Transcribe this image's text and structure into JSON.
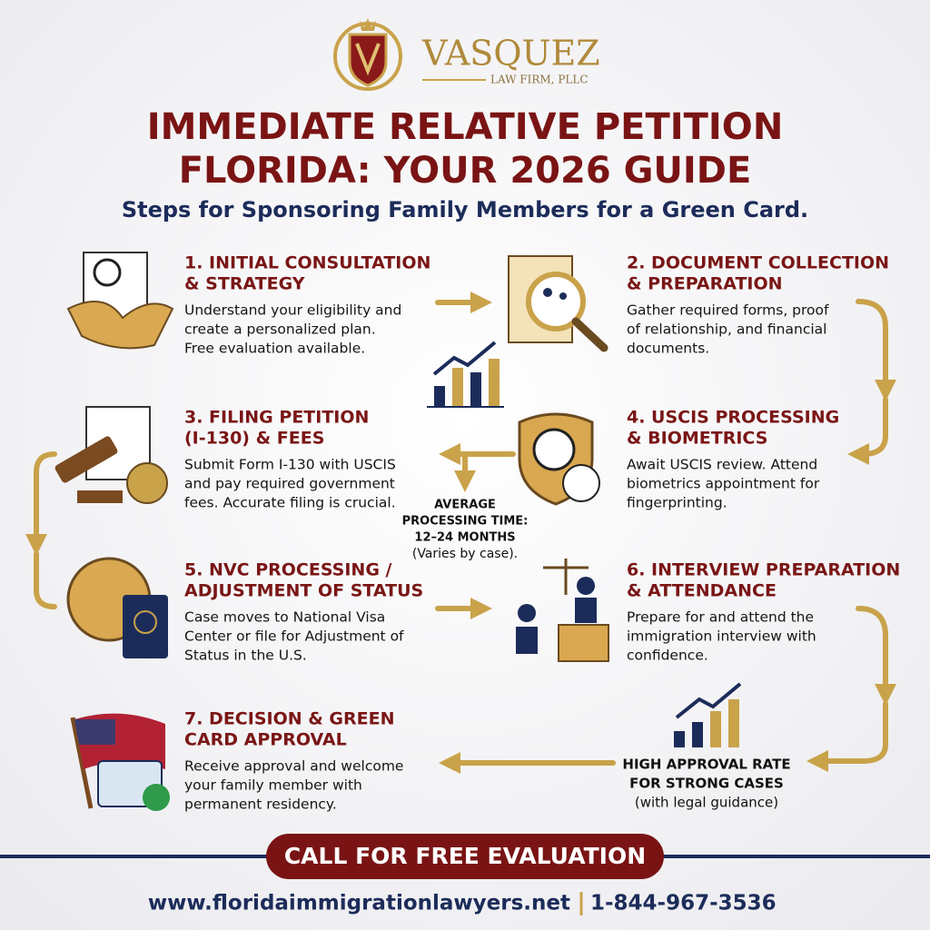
{
  "header": {
    "logo_name": "VASQUEZ",
    "logo_sub": "LAW FIRM, PLLC",
    "title_lines": [
      "IMMEDIATE RELATIVE PETITION",
      "FLORIDA: YOUR 2026 GUIDE"
    ],
    "subtitle": "Steps for Sponsoring Family Members for a Green Card."
  },
  "steps": [
    {
      "title_lines": [
        "1. INITIAL CONSULTATION",
        "& STRATEGY"
      ],
      "body_lines": [
        "Understand your eligibility and",
        "create a personalized plan.",
        "Free evaluation available."
      ]
    },
    {
      "title_lines": [
        "2. DOCUMENT COLLECTION",
        "& PREPARATION"
      ],
      "body_lines": [
        "Gather required forms, proof",
        "of relationship, and financial",
        "documents."
      ]
    },
    {
      "title_lines": [
        "3. FILING PETITION",
        "(I-130) & FEES"
      ],
      "body_lines": [
        "Submit Form I-130 with USCIS",
        "and pay required government",
        "fees. Accurate filing is crucial."
      ]
    },
    {
      "title_lines": [
        "4. USCIS PROCESSING",
        "& BIOMETRICS"
      ],
      "body_lines": [
        "Await USCIS review. Attend",
        "biometrics appointment for",
        "fingerprinting."
      ]
    },
    {
      "title_lines": [
        "5. NVC PROCESSING /",
        "ADJUSTMENT OF STATUS"
      ],
      "body_lines": [
        "Case moves to National Visa",
        "Center or file for Adjustment of",
        "Status in the U.S."
      ]
    },
    {
      "title_lines": [
        "6. INTERVIEW PREPARATION",
        "& ATTENDANCE"
      ],
      "body_lines": [
        "Prepare for and attend the",
        "immigration interview with",
        "confidence."
      ]
    },
    {
      "title_lines": [
        "7. DECISION & GREEN",
        "CARD APPROVAL"
      ],
      "body_lines": [
        "Receive approval and welcome",
        "your family member with",
        "permanent residency."
      ]
    }
  ],
  "notes": {
    "processing": [
      "AVERAGE",
      "PROCESSING TIME:",
      "12–24 MONTHS",
      "(Varies by case)."
    ],
    "approval": [
      "HIGH APPROVAL RATE",
      "FOR STRONG CASES",
      "(with legal guidance)"
    ]
  },
  "footer": {
    "cta": "CALL FOR FREE EVALUATION",
    "website": "www.floridaimmigrationlawyers.net",
    "phone": "1-844-967-3536"
  }
}
